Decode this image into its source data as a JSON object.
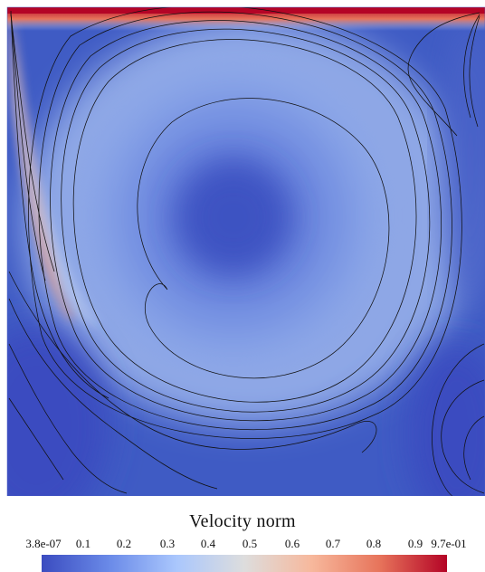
{
  "colorbar": {
    "title": "Velocity norm",
    "ticks": [
      "3.8e-07",
      "0.1",
      "0.2",
      "0.3",
      "0.4",
      "0.5",
      "0.6",
      "0.7",
      "0.8",
      "0.9",
      "9.7e-01"
    ],
    "tick_values": [
      0.0,
      0.1,
      0.2,
      0.3,
      0.4,
      0.5,
      0.6,
      0.7,
      0.8,
      0.9,
      0.97
    ],
    "range": [
      3.8e-07,
      0.97
    ],
    "colors": [
      "#3b4cc0",
      "#6a8ae8",
      "#aac7fd",
      "#dddddd",
      "#f7b89c",
      "#e7745b",
      "#b40426"
    ]
  },
  "field": {
    "background_color": "#3f5bc4",
    "lid_color": "#b40426",
    "contour_color": "#111111"
  }
}
